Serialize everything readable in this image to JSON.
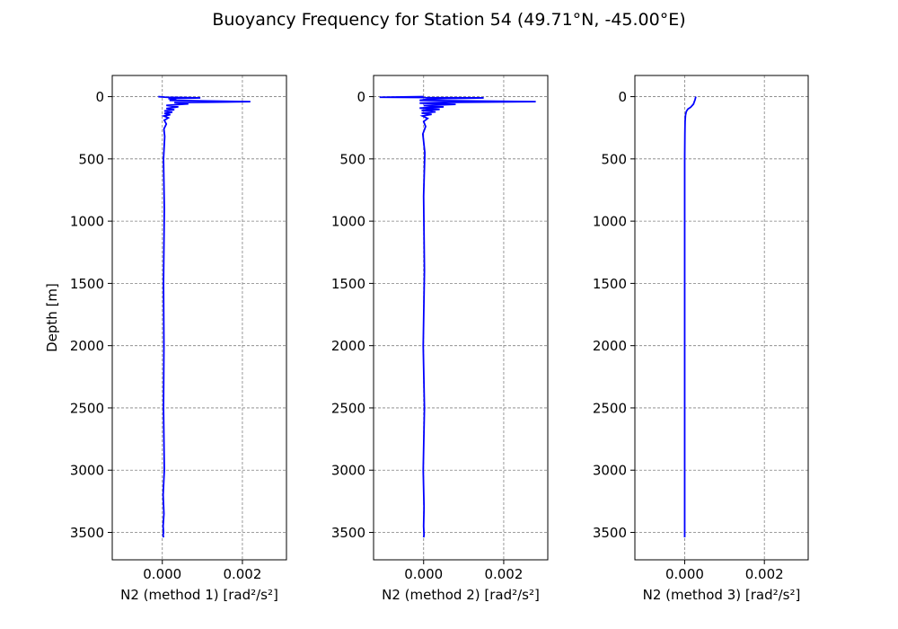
{
  "figure": {
    "title": "Buoyancy Frequency for Station 54 (49.71°N, -45.00°E)"
  },
  "chart_data": [
    {
      "type": "line",
      "title": "",
      "xlabel": "N2 (method 1) [rad²/s²]",
      "ylabel": "Depth [m]",
      "xlim": [
        -0.00125,
        0.0031
      ],
      "ylim": [
        3720,
        -170
      ],
      "y_inverted": true,
      "grid": true,
      "xticks": [
        0.0,
        0.002
      ],
      "xtick_labels": [
        "0.000",
        "0.002"
      ],
      "yticks": [
        0,
        500,
        1000,
        1500,
        2000,
        2500,
        3000,
        3500
      ],
      "ytick_labels": [
        "0",
        "500",
        "1000",
        "1500",
        "2000",
        "2500",
        "3000",
        "3500"
      ],
      "series": [
        {
          "color": "#0000ff",
          "x": [
            -0.0001,
            0.0001,
            0.00095,
            0.00015,
            0.00035,
            0.00018,
            0.0022,
            0.0003,
            0.00065,
            0.0001,
            0.0004,
            0.0001,
            0.0003,
            5e-05,
            0.00025,
            5e-05,
            0.0002,
            4e-05,
            0.00015,
            5e-05,
            0.0001,
            4e-05,
            6e-05,
            3e-05,
            5e-05,
            3e-05,
            4e-05,
            3e-05,
            5e-05,
            2e-05,
            4e-05,
            2e-05,
            3e-05,
            2e-05,
            3e-05
          ],
          "y": [
            0,
            5,
            10,
            16,
            22,
            30,
            40,
            48,
            58,
            70,
            82,
            95,
            105,
            115,
            125,
            135,
            145,
            155,
            170,
            190,
            220,
            260,
            320,
            500,
            900,
            1500,
            2000,
            2500,
            3000,
            3200,
            3350,
            3450,
            3500,
            3520,
            3540
          ]
        }
      ]
    },
    {
      "type": "line",
      "title": "",
      "xlabel": "N2 (method 2) [rad²/s²]",
      "ylabel": "",
      "xlim": [
        -0.00125,
        0.0031
      ],
      "ylim": [
        3720,
        -170
      ],
      "y_inverted": true,
      "grid": true,
      "xticks": [
        0.0,
        0.002
      ],
      "xtick_labels": [
        "0.000",
        "0.002"
      ],
      "yticks": [
        0,
        500,
        1000,
        1500,
        2000,
        2500,
        3000,
        3500
      ],
      "ytick_labels": [
        "0",
        "500",
        "1000",
        "1500",
        "2000",
        "2500",
        "3000",
        "3500"
      ],
      "series": [
        {
          "color": "#0000ff",
          "x": [
            0.0,
            -0.0011,
            0.0015,
            0.0006,
            0.0001,
            -0.0001,
            0.0028,
            0.0005,
            -0.0001,
            0.0008,
            0.0,
            0.0005,
            -0.0001,
            0.0004,
            -5e-05,
            0.0003,
            -5e-05,
            0.0002,
            -3e-05,
            0.0001,
            0.0,
            5e-05,
            -2e-05,
            3e-05,
            0.0,
            2e-05,
            -1e-05,
            2e-05,
            -1e-05,
            1e-05,
            0.0,
            1e-05,
            0.0
          ],
          "y": [
            0,
            5,
            10,
            15,
            20,
            30,
            40,
            46,
            52,
            62,
            72,
            82,
            92,
            102,
            112,
            122,
            132,
            142,
            155,
            175,
            200,
            240,
            300,
            450,
            800,
            1400,
            2000,
            2500,
            3000,
            3300,
            3450,
            3520,
            3540
          ]
        }
      ]
    },
    {
      "type": "line",
      "title": "",
      "xlabel": "N2 (method 3) [rad²/s²]",
      "ylabel": "",
      "xlim": [
        -0.00125,
        0.0031
      ],
      "ylim": [
        3720,
        -170
      ],
      "y_inverted": true,
      "grid": true,
      "xticks": [
        0.0,
        0.002
      ],
      "xtick_labels": [
        "0.000",
        "0.002"
      ],
      "yticks": [
        0,
        500,
        1000,
        1500,
        2000,
        2500,
        3000,
        3500
      ],
      "ytick_labels": [
        "0",
        "500",
        "1000",
        "1500",
        "2000",
        "2500",
        "3000",
        "3500"
      ],
      "series": [
        {
          "color": "#0000ff",
          "x": [
            0.00028,
            0.00026,
            0.00022,
            0.00015,
            8e-05,
            4e-05,
            2e-05,
            1e-05,
            5e-06,
            0.0,
            0.0,
            0.0
          ],
          "y": [
            0,
            25,
            60,
            85,
            100,
            120,
            150,
            200,
            300,
            500,
            1000,
            3540
          ]
        }
      ]
    }
  ]
}
